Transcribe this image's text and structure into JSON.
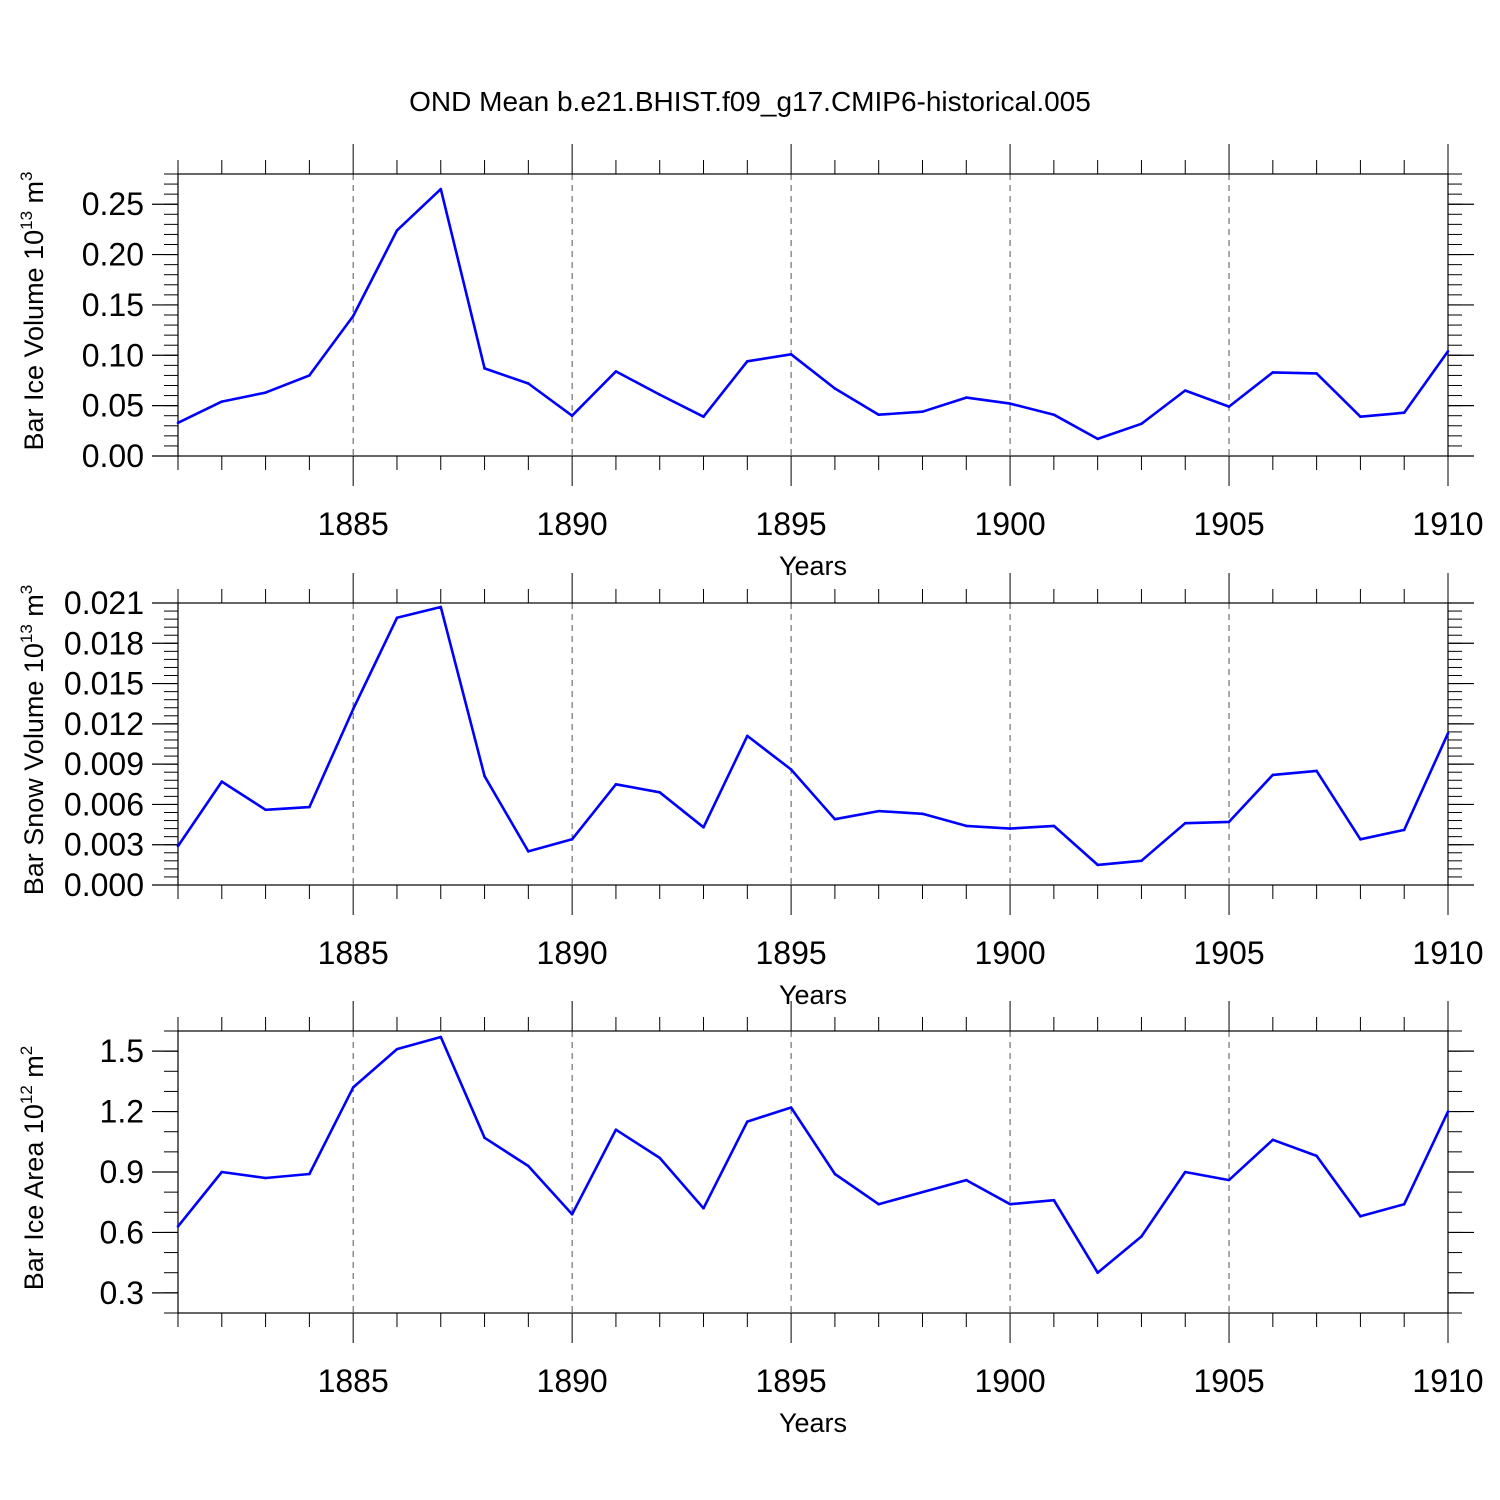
{
  "title": "OND Mean b.e21.BHIST.f09_g17.CMIP6-historical.005",
  "colors": {
    "line": "#0000ff",
    "axis": "#000000",
    "grid": "#555555",
    "background": "#ffffff"
  },
  "chart_data": [
    {
      "type": "line",
      "ylabel_parts": {
        "main": "Bar Ice Volume 10",
        "exp": "13",
        "unit": " m",
        "unit_exp": "3"
      },
      "xlabel": "Years",
      "xlim": [
        1881,
        1910
      ],
      "ylim": [
        0.0,
        0.28
      ],
      "x_ticks": [
        1885,
        1890,
        1895,
        1900,
        1905,
        1910
      ],
      "x_tick_labels": [
        "1885",
        "1890",
        "1895",
        "1900",
        "1905",
        "1910"
      ],
      "y_ticks": [
        0.0,
        0.05,
        0.1,
        0.15,
        0.2,
        0.25
      ],
      "y_tick_labels": [
        "0.00",
        "0.05",
        "0.10",
        "0.15",
        "0.20",
        "0.25"
      ],
      "y_minor_step": 0.01,
      "grid": "vertical dashed at major x ticks",
      "x": [
        1881,
        1882,
        1883,
        1884,
        1885,
        1886,
        1887,
        1888,
        1889,
        1890,
        1891,
        1892,
        1893,
        1894,
        1895,
        1896,
        1897,
        1898,
        1899,
        1900,
        1901,
        1902,
        1903,
        1904,
        1905,
        1906,
        1907,
        1908,
        1909,
        1910
      ],
      "series": [
        {
          "values": [
            0.033,
            0.054,
            0.063,
            0.08,
            0.139,
            0.224,
            0.265,
            0.087,
            0.072,
            0.04,
            0.084,
            0.061,
            0.039,
            0.094,
            0.101,
            0.067,
            0.041,
            0.044,
            0.058,
            0.052,
            0.041,
            0.017,
            0.032,
            0.065,
            0.049,
            0.083,
            0.082,
            0.039,
            0.043,
            0.104
          ]
        }
      ]
    },
    {
      "type": "line",
      "ylabel_parts": {
        "main": "Bar Snow Volume 10",
        "exp": "13",
        "unit": " m",
        "unit_exp": "3"
      },
      "xlabel": "Years",
      "xlim": [
        1881,
        1910
      ],
      "ylim": [
        0.0,
        0.021
      ],
      "x_ticks": [
        1885,
        1890,
        1895,
        1900,
        1905,
        1910
      ],
      "x_tick_labels": [
        "1885",
        "1890",
        "1895",
        "1900",
        "1905",
        "1910"
      ],
      "y_ticks": [
        0.0,
        0.003,
        0.006,
        0.009,
        0.012,
        0.015,
        0.018,
        0.021
      ],
      "y_tick_labels": [
        "0.000",
        "0.003",
        "0.006",
        "0.009",
        "0.012",
        "0.015",
        "0.018",
        "0.021"
      ],
      "y_minor_step": 0.0006,
      "grid": "vertical dashed at major x ticks",
      "x": [
        1881,
        1882,
        1883,
        1884,
        1885,
        1886,
        1887,
        1888,
        1889,
        1890,
        1891,
        1892,
        1893,
        1894,
        1895,
        1896,
        1897,
        1898,
        1899,
        1900,
        1901,
        1902,
        1903,
        1904,
        1905,
        1906,
        1907,
        1908,
        1909,
        1910
      ],
      "series": [
        {
          "values": [
            0.0029,
            0.0077,
            0.0056,
            0.0058,
            0.0131,
            0.0199,
            0.0207,
            0.0081,
            0.0025,
            0.0034,
            0.0075,
            0.0069,
            0.0043,
            0.0111,
            0.0086,
            0.0049,
            0.0055,
            0.0053,
            0.0044,
            0.0042,
            0.0044,
            0.0015,
            0.0018,
            0.0046,
            0.0047,
            0.0082,
            0.0085,
            0.0034,
            0.0041,
            0.0113
          ]
        }
      ]
    },
    {
      "type": "line",
      "ylabel_parts": {
        "main": "Bar Ice Area 10",
        "exp": "12",
        "unit": " m",
        "unit_exp": "2"
      },
      "xlabel": "Years",
      "xlim": [
        1881,
        1910
      ],
      "ylim": [
        0.2,
        1.6
      ],
      "x_ticks": [
        1885,
        1890,
        1895,
        1900,
        1905,
        1910
      ],
      "x_tick_labels": [
        "1885",
        "1890",
        "1895",
        "1900",
        "1905",
        "1910"
      ],
      "y_ticks": [
        0.3,
        0.6,
        0.9,
        1.2,
        1.5
      ],
      "y_tick_labels": [
        "0.3",
        "0.6",
        "0.9",
        "1.2",
        "1.5"
      ],
      "y_minor_step": 0.1,
      "grid": "vertical dashed at major x ticks",
      "x": [
        1881,
        1882,
        1883,
        1884,
        1885,
        1886,
        1887,
        1888,
        1889,
        1890,
        1891,
        1892,
        1893,
        1894,
        1895,
        1896,
        1897,
        1898,
        1899,
        1900,
        1901,
        1902,
        1903,
        1904,
        1905,
        1906,
        1907,
        1908,
        1909,
        1910
      ],
      "series": [
        {
          "values": [
            0.63,
            0.9,
            0.87,
            0.89,
            1.32,
            1.51,
            1.57,
            1.07,
            0.93,
            0.69,
            1.11,
            0.97,
            0.72,
            1.15,
            1.22,
            0.89,
            0.74,
            0.8,
            0.86,
            0.74,
            0.76,
            0.4,
            0.58,
            0.9,
            0.86,
            1.06,
            0.98,
            0.68,
            0.74,
            1.2
          ]
        }
      ]
    }
  ]
}
